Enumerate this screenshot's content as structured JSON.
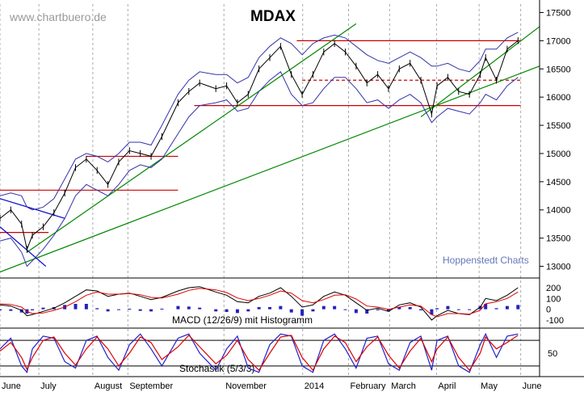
{
  "watermark": "www.chartbuero.de",
  "credit": "Hoppenstedt Charts",
  "chart_data": {
    "type": "line",
    "title": "MDAX",
    "price_axis": {
      "ylim": [
        12850,
        17650
      ],
      "ticks": [
        "17500",
        "17000",
        "16500",
        "16000",
        "15500",
        "15000",
        "14500",
        "14000",
        "13500",
        "13000"
      ],
      "tick_values": [
        17500,
        17000,
        16500,
        16000,
        15500,
        15000,
        14500,
        14000,
        13500,
        13000
      ]
    },
    "months": [
      "June",
      "July",
      "August",
      "September",
      "November",
      "2014",
      "February",
      "March",
      "April",
      "May",
      "June"
    ],
    "month_positions": [
      0.0,
      0.072,
      0.172,
      0.237,
      0.415,
      0.561,
      0.646,
      0.722,
      0.809,
      0.888,
      0.965
    ],
    "series": [
      {
        "name": "MDAX",
        "style": "ohlc",
        "x": [
          0.0,
          0.02,
          0.04,
          0.05,
          0.06,
          0.08,
          0.1,
          0.12,
          0.14,
          0.16,
          0.18,
          0.2,
          0.22,
          0.24,
          0.26,
          0.28,
          0.3,
          0.33,
          0.35,
          0.37,
          0.4,
          0.42,
          0.44,
          0.46,
          0.48,
          0.5,
          0.52,
          0.54,
          0.56,
          0.58,
          0.6,
          0.62,
          0.64,
          0.66,
          0.68,
          0.7,
          0.72,
          0.74,
          0.76,
          0.78,
          0.8,
          0.81,
          0.83,
          0.85,
          0.87,
          0.89,
          0.9,
          0.92,
          0.94,
          0.96
        ],
        "values": [
          13850,
          14000,
          13750,
          13300,
          13550,
          13700,
          13950,
          14300,
          14750,
          14900,
          14700,
          14450,
          14850,
          15050,
          15000,
          14950,
          15300,
          15900,
          16100,
          16250,
          16150,
          16200,
          15900,
          16050,
          16500,
          16700,
          16900,
          16400,
          16050,
          16400,
          16800,
          16950,
          16800,
          16550,
          16250,
          16400,
          16150,
          16500,
          16600,
          16300,
          15700,
          16200,
          16350,
          16100,
          16050,
          16400,
          16700,
          16300,
          16850,
          17000
        ]
      }
    ],
    "bollinger_upper": [
      14250,
      14300,
      14250,
      14050,
      14000,
      14050,
      14200,
      14550,
      14900,
      15000,
      14950,
      14850,
      15000,
      15200,
      15200,
      15150,
      15500,
      16050,
      16300,
      16450,
      16400,
      16400,
      16250,
      16350,
      16700,
      16900,
      17050,
      16950,
      16750,
      16950,
      17050,
      17100,
      17050,
      16900,
      16750,
      16650,
      16600,
      16700,
      16800,
      16700,
      16550,
      16550,
      16600,
      16500,
      16450,
      16650,
      16850,
      16850,
      17050,
      17150
    ],
    "bollinger_lower": [
      13450,
      13500,
      13250,
      13000,
      13100,
      13300,
      13550,
      13850,
      14250,
      14450,
      14350,
      14250,
      14450,
      14700,
      14800,
      14750,
      14900,
      15350,
      15650,
      15850,
      15900,
      15950,
      15750,
      15800,
      16100,
      16300,
      16450,
      16050,
      15850,
      15900,
      16150,
      16350,
      16350,
      16150,
      15900,
      15950,
      15800,
      15950,
      16050,
      15900,
      15550,
      15650,
      15800,
      15750,
      15700,
      15900,
      16050,
      15950,
      16200,
      16350
    ],
    "lines": [
      {
        "name": "resistance",
        "color": "#cc0000",
        "dash": false,
        "x": [
          0.55,
          0.965
        ],
        "y": [
          17000,
          17000
        ]
      },
      {
        "name": "mid-level",
        "color": "#cc0000",
        "dash": true,
        "x": [
          0.56,
          0.965
        ],
        "y": [
          16300,
          16300
        ]
      },
      {
        "name": "support",
        "color": "#cc0000",
        "dash": false,
        "x": [
          0.36,
          0.965
        ],
        "y": [
          15850,
          15850
        ]
      },
      {
        "name": "level-14350",
        "color": "#cc0000",
        "dash": false,
        "x": [
          0.0,
          0.33
        ],
        "y": [
          14350,
          14350
        ]
      },
      {
        "name": "level-14950",
        "color": "#cc0000",
        "dash": false,
        "x": [
          0.16,
          0.33
        ],
        "y": [
          14950,
          14950
        ]
      },
      {
        "name": "level-13600",
        "color": "#cc0000",
        "dash": false,
        "x": [
          0.0,
          0.09
        ],
        "y": [
          13600,
          13600
        ]
      },
      {
        "name": "trend-long",
        "color": "#008800",
        "dash": false,
        "x": [
          0.0,
          1.0
        ],
        "y": [
          12900,
          16550
        ]
      },
      {
        "name": "trend-steep",
        "color": "#008800",
        "dash": false,
        "x": [
          0.05,
          0.66
        ],
        "y": [
          13250,
          17300
        ]
      },
      {
        "name": "trend-recent",
        "color": "#008800",
        "dash": false,
        "x": [
          0.78,
          1.0
        ],
        "y": [
          15650,
          17250
        ]
      },
      {
        "name": "downtrend",
        "color": "#0000cc",
        "dash": false,
        "x": [
          0.0,
          0.12
        ],
        "y": [
          14200,
          13850
        ]
      },
      {
        "name": "downtrend-2",
        "color": "#0000cc",
        "dash": false,
        "x": [
          0.0,
          0.085
        ],
        "y": [
          13700,
          13000
        ]
      }
    ],
    "macd": {
      "label": "MACD (12/26/9) mit Histogramm",
      "ticks": [
        "200",
        "100",
        "0",
        "-100"
      ],
      "tick_values": [
        200,
        100,
        0,
        -100
      ],
      "ylim": [
        -160,
        260
      ],
      "macd_line": [
        40,
        30,
        -10,
        -60,
        -50,
        -20,
        10,
        60,
        120,
        180,
        170,
        120,
        140,
        150,
        120,
        90,
        110,
        170,
        200,
        210,
        160,
        130,
        70,
        60,
        120,
        150,
        200,
        120,
        20,
        40,
        120,
        160,
        130,
        60,
        -10,
        10,
        -20,
        40,
        60,
        20,
        -100,
        -60,
        -10,
        -40,
        -50,
        20,
        100,
        80,
        130,
        200
      ],
      "signal_line": [
        50,
        45,
        20,
        -20,
        -40,
        -35,
        -10,
        20,
        70,
        130,
        160,
        140,
        140,
        145,
        135,
        110,
        105,
        140,
        175,
        195,
        180,
        155,
        105,
        80,
        100,
        130,
        170,
        150,
        80,
        60,
        90,
        130,
        135,
        95,
        30,
        20,
        0,
        20,
        40,
        30,
        -50,
        -70,
        -40,
        -40,
        -45,
        -10,
        50,
        70,
        100,
        160
      ],
      "histogram": [
        -10,
        -15,
        -30,
        -40,
        -10,
        15,
        20,
        40,
        50,
        50,
        10,
        -20,
        0,
        5,
        -15,
        -20,
        5,
        30,
        25,
        15,
        -20,
        -25,
        -35,
        -20,
        20,
        20,
        30,
        -30,
        -60,
        -20,
        30,
        30,
        -5,
        -35,
        -40,
        -10,
        -20,
        20,
        20,
        -10,
        -50,
        10,
        30,
        0,
        -5,
        30,
        50,
        10,
        30,
        40
      ]
    },
    "stochastic": {
      "label": "Stochastik (5/3/3)",
      "ticks": [
        "50"
      ],
      "tick_values": [
        50
      ],
      "ylim": [
        -5,
        105
      ],
      "levels": [
        80,
        20
      ],
      "k_line": [
        60,
        85,
        20,
        5,
        60,
        90,
        85,
        30,
        15,
        80,
        90,
        40,
        10,
        70,
        95,
        60,
        20,
        85,
        95,
        50,
        10,
        60,
        90,
        15,
        5,
        70,
        95,
        90,
        20,
        5,
        80,
        95,
        60,
        15,
        85,
        90,
        25,
        10,
        75,
        90,
        10,
        80,
        90,
        20,
        5,
        70,
        95,
        40,
        90,
        95
      ],
      "d_line": [
        55,
        75,
        40,
        12,
        40,
        80,
        88,
        50,
        22,
        60,
        88,
        60,
        20,
        50,
        88,
        75,
        35,
        65,
        92,
        65,
        25,
        45,
        80,
        35,
        10,
        50,
        88,
        92,
        40,
        10,
        60,
        90,
        75,
        30,
        65,
        88,
        45,
        15,
        55,
        85,
        30,
        60,
        88,
        40,
        10,
        50,
        88,
        60,
        75,
        92
      ]
    }
  }
}
